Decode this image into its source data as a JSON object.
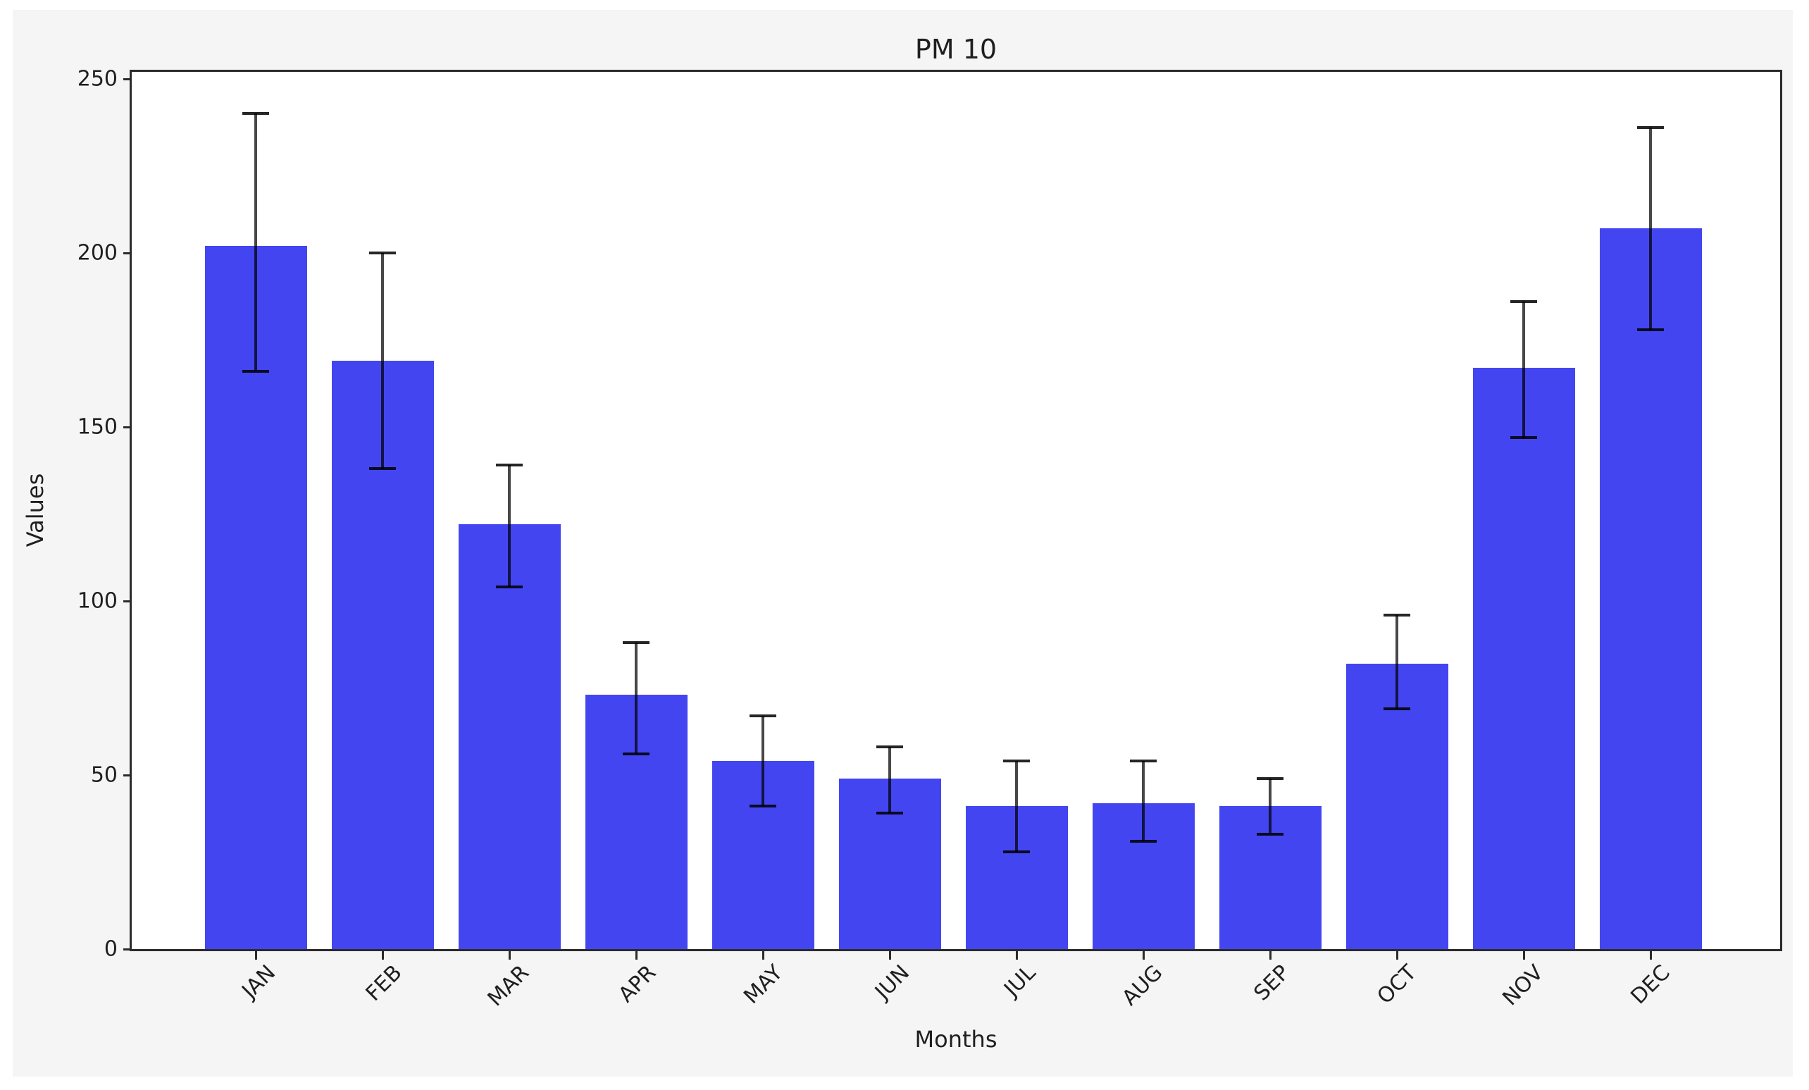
{
  "figure": {
    "title": "PM 10",
    "xlabel": "Months",
    "ylabel": "Values"
  },
  "chart_data": {
    "type": "bar",
    "title": "PM 10",
    "xlabel": "Months",
    "ylabel": "Values",
    "categories": [
      "JAN",
      "FEB",
      "MAR",
      "APR",
      "MAY",
      "JUN",
      "JUL",
      "AUG",
      "SEP",
      "OCT",
      "NOV",
      "DEC"
    ],
    "values": [
      202,
      169,
      122,
      73,
      54,
      49,
      41,
      42,
      41,
      82,
      167,
      207
    ],
    "error_low": [
      166,
      138,
      104,
      56,
      41,
      39,
      28,
      31,
      33,
      69,
      147,
      178
    ],
    "error_high": [
      240,
      200,
      139,
      88,
      67,
      58,
      54,
      54,
      49,
      96,
      186,
      236
    ],
    "yticks": [
      0,
      50,
      100,
      150,
      200,
      250
    ],
    "ylim": [
      0,
      252
    ],
    "grid": false,
    "legend_position": "none",
    "colors": {
      "bar": "#4346f0",
      "error_line": "rgba(0,0,0,0.72)",
      "error_cap": "rgba(0,0,0,0.85)",
      "axes_bg": "#ffffff",
      "figure_bg": "#f5f5f5",
      "page_bg": "#ffffff",
      "spine": "#2b2b2b",
      "text": "#1f1f1f"
    }
  }
}
